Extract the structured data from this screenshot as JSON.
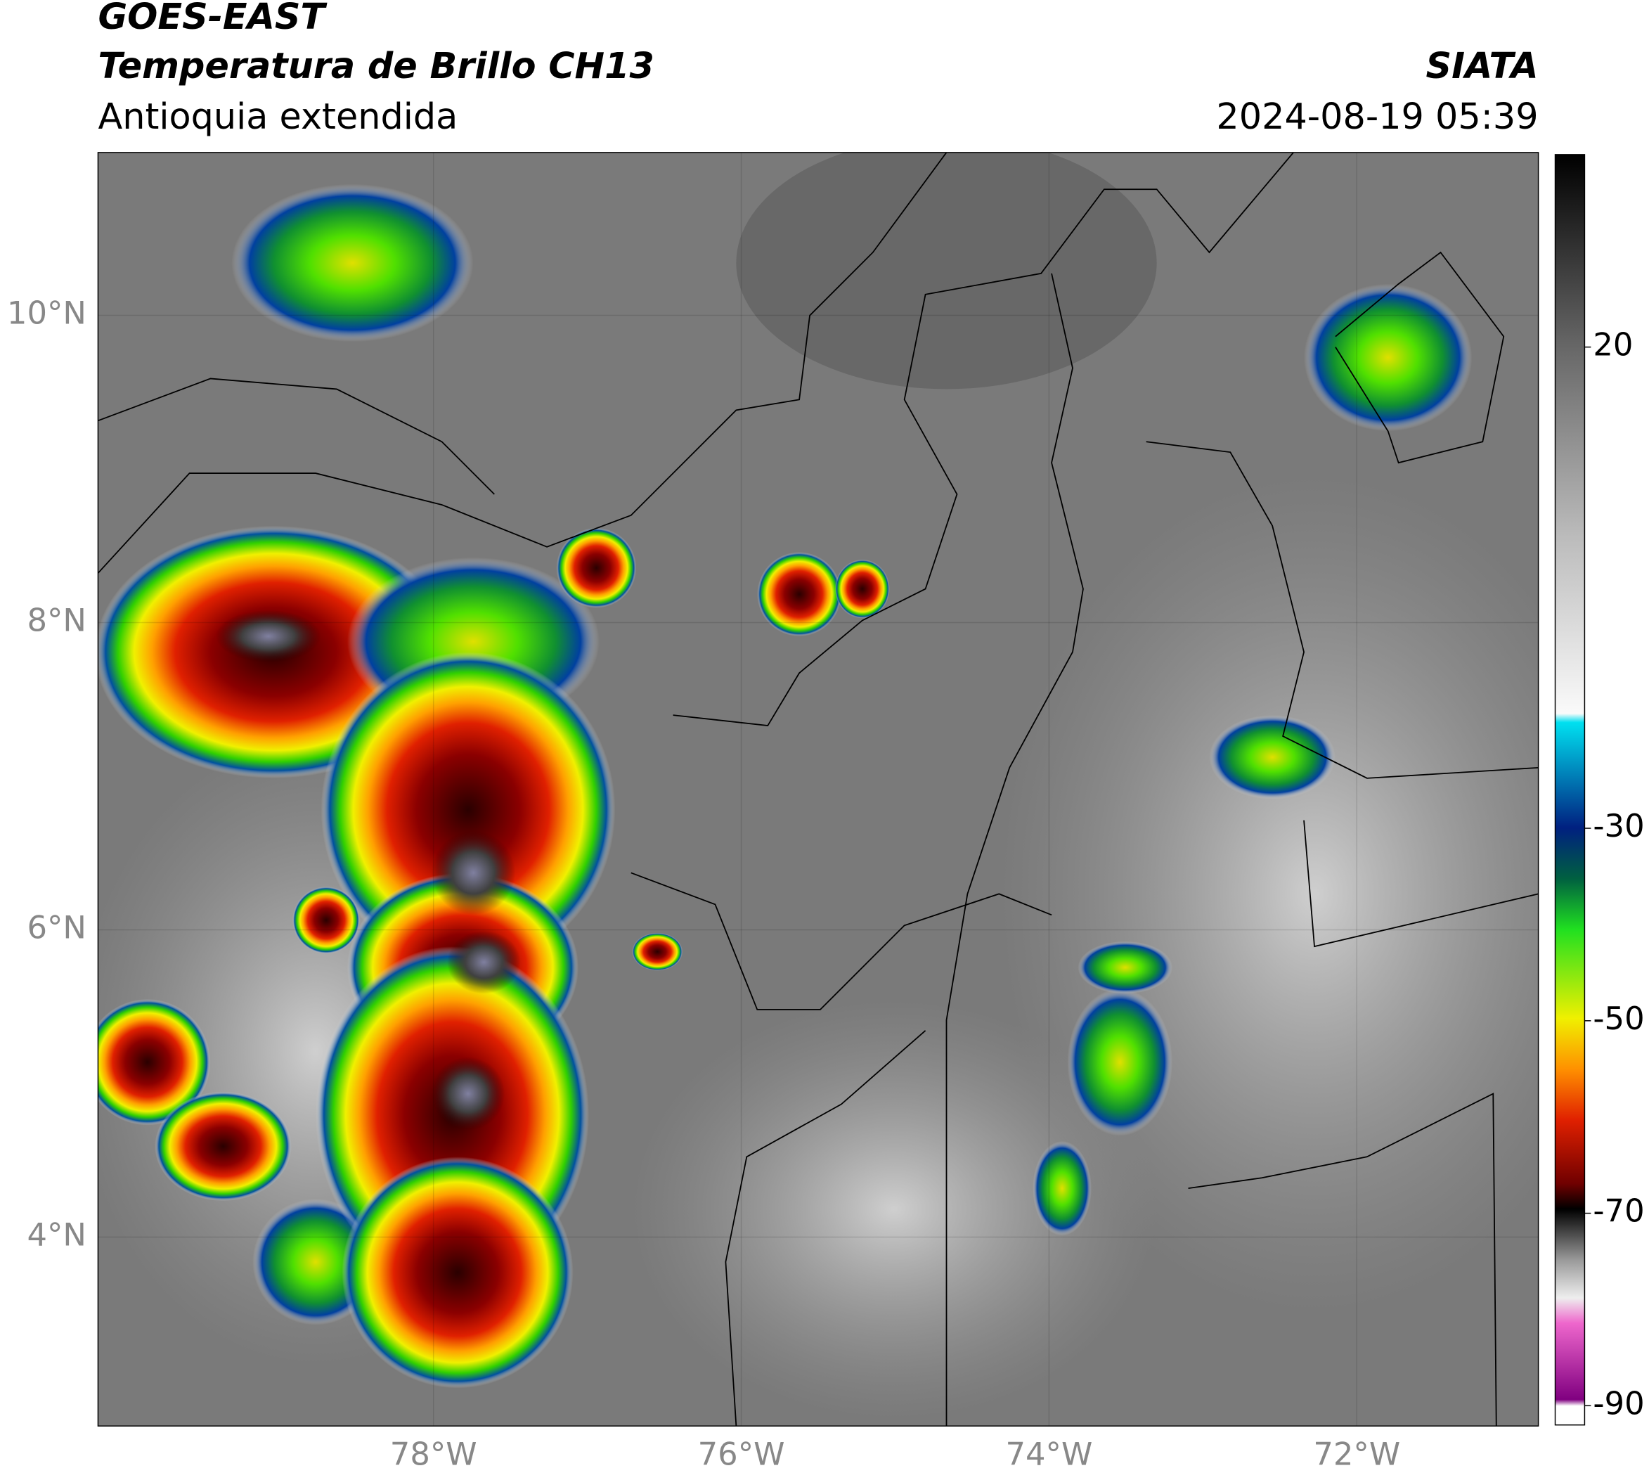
{
  "header": {
    "title": "GOES-EAST",
    "subtitle": "Temperatura de Brillo CH13",
    "region": "Antioquia extendida",
    "source": "SIATA",
    "timestamp": "2024-08-19 05:39"
  },
  "map": {
    "xlim": [
      -80.18,
      -70.82
    ],
    "ylim": [
      2.77,
      11.06
    ],
    "xticks": [
      {
        "value": -78,
        "label": "78°W"
      },
      {
        "value": -76,
        "label": "76°W"
      },
      {
        "value": -74,
        "label": "74°W"
      },
      {
        "value": -72,
        "label": "72°W"
      }
    ],
    "yticks": [
      {
        "value": 4,
        "label": "4°N"
      },
      {
        "value": 6,
        "label": "6°N"
      },
      {
        "value": 8,
        "label": "8°N"
      },
      {
        "value": 10,
        "label": "10°N"
      }
    ],
    "grid": true
  },
  "colorbar": {
    "clim": [
      -92,
      40
    ],
    "ticks": [
      20,
      -30,
      -50,
      -70,
      -90
    ]
  }
}
